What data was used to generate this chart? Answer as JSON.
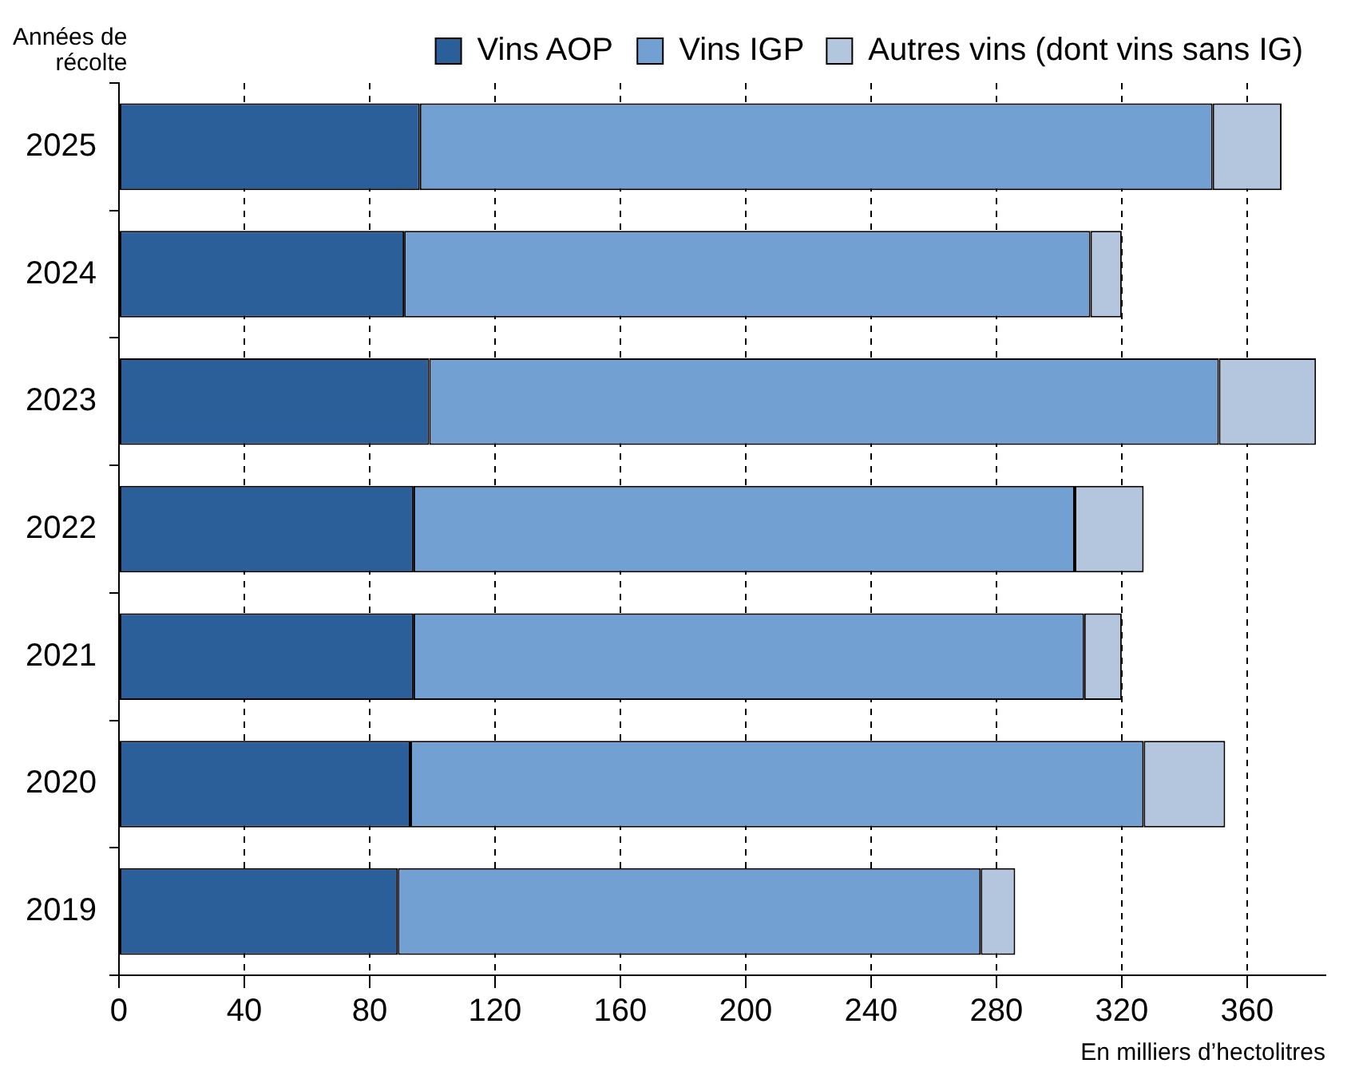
{
  "chart_data": {
    "type": "bar",
    "orientation": "horizontal",
    "stacked": true,
    "ylabel": "Années de\nrécolte",
    "xlabel": "En milliers d’hectolitres",
    "categories": [
      "2025",
      "2024",
      "2023",
      "2022",
      "2021",
      "2020",
      "2019"
    ],
    "series": [
      {
        "name": "Vins AOP",
        "color": "#2b5f9a",
        "values": [
          96,
          91,
          99,
          94,
          94,
          93,
          89
        ]
      },
      {
        "name": "Vins IGP",
        "color": "#72a0d2",
        "values": [
          253,
          219,
          252,
          211,
          214,
          234,
          186
        ]
      },
      {
        "name": "Autres vins (dont vins sans IG)",
        "color": "#b4c6de",
        "values": [
          22,
          10,
          31,
          22,
          12,
          26,
          11
        ]
      }
    ],
    "xlim": [
      0,
      385
    ],
    "xticks": [
      0,
      40,
      80,
      120,
      160,
      200,
      240,
      280,
      320,
      360
    ],
    "grid": "x",
    "legend": "top"
  }
}
